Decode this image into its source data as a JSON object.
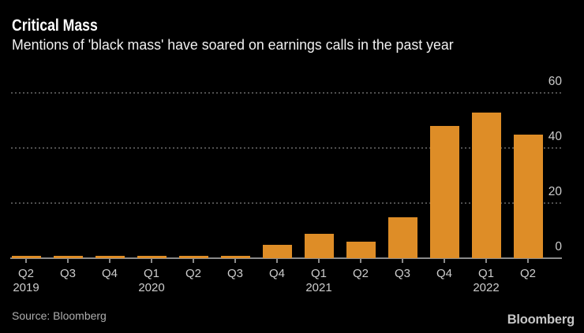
{
  "title": "Critical Mass",
  "subtitle": "Mentions of 'black mass' have soared on earnings calls in the past year",
  "source": "Source: Bloomberg",
  "brand": "Bloomberg",
  "colors": {
    "background": "#000000",
    "bar": "#DE8D27",
    "title_text": "#FFFFFF",
    "subtitle_text": "#F1F1F1",
    "axis_text": "#CDCDCD",
    "gridline": "#4F4F4F",
    "baseline": "#8A8A8A",
    "source_text": "#AEAEAE",
    "brand_text": "#C6C6C6"
  },
  "chart_data": {
    "type": "bar",
    "title": "Critical Mass",
    "subtitle": "Mentions of 'black mass' have soared on earnings calls in the past year",
    "categories": [
      "Q2 2019",
      "Q3 2019",
      "Q4 2019",
      "Q1 2020",
      "Q2 2020",
      "Q3 2020",
      "Q4 2020",
      "Q1 2021",
      "Q2 2021",
      "Q3 2021",
      "Q4 2021",
      "Q1 2022",
      "Q2 2022"
    ],
    "quarter_labels": [
      "Q2",
      "Q3",
      "Q4",
      "Q1",
      "Q2",
      "Q3",
      "Q4",
      "Q1",
      "Q2",
      "Q3",
      "Q4",
      "Q1",
      "Q2"
    ],
    "year_labels": [
      {
        "text": "2019",
        "index": 0
      },
      {
        "text": "2020",
        "index": 3
      },
      {
        "text": "2021",
        "index": 7
      },
      {
        "text": "2022",
        "index": 11
      }
    ],
    "values": [
      1,
      1,
      1,
      1,
      1,
      1,
      5,
      9,
      6,
      15,
      48,
      53,
      45
    ],
    "xlabel": "",
    "ylabel": "",
    "ylim": [
      0,
      60
    ],
    "yticks": [
      0,
      20,
      40,
      60
    ],
    "grid": "horizontal-dotted",
    "legend": "none",
    "y_axis_side": "right",
    "source": "Source: Bloomberg"
  }
}
